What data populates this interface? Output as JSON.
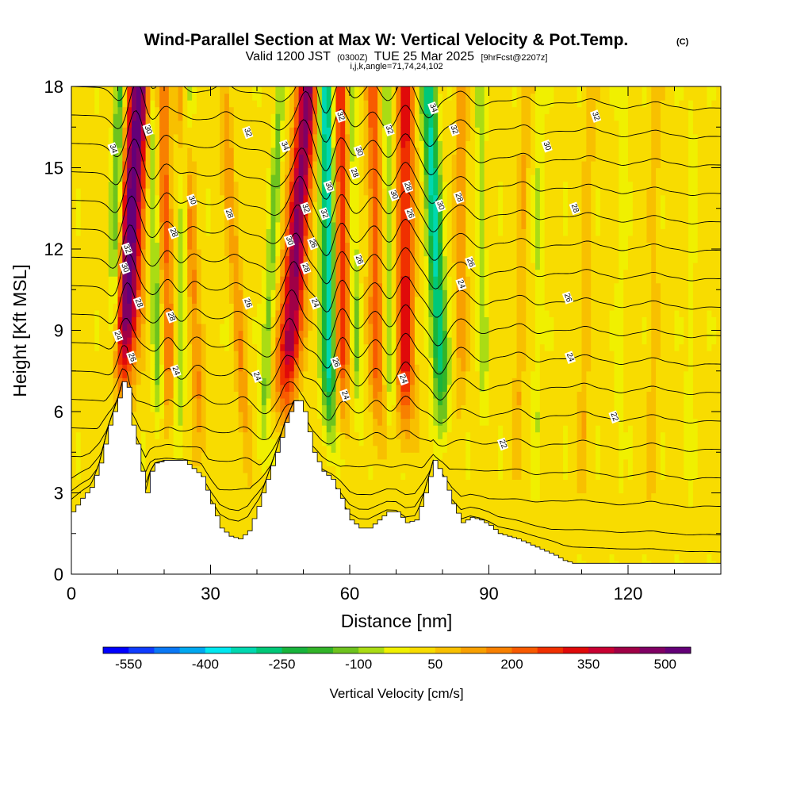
{
  "chart_data": {
    "type": "heatmap",
    "title": "Wind-Parallel Section at Max W: Vertical Velocity & Pot.Temp.",
    "title_tag": "(C)",
    "subtitle": {
      "prefix": "Valid 1200 JST",
      "utc": "(0300Z)",
      "date": "TUE 25 Mar 2025",
      "forecast": "[9hrFcst@2207z]"
    },
    "params": "i,j,k,angle=71,74,24,102",
    "xlabel": "Distance [nm]",
    "ylabel": "Height [Kft MSL]",
    "xlim": [
      0,
      140
    ],
    "ylim": [
      0,
      18
    ],
    "x_ticks": [
      "0",
      "30",
      "60",
      "90",
      "120"
    ],
    "y_ticks": [
      "0",
      "3",
      "6",
      "9",
      "12",
      "15",
      "18"
    ],
    "colorbar": {
      "title": "Vertical Velocity [cm/s]",
      "colors": [
        "#0000ff",
        "#0f3cff",
        "#0a78f5",
        "#00a8f0",
        "#00e8f0",
        "#00d8b0",
        "#00c878",
        "#18b43c",
        "#32b428",
        "#6ec31e",
        "#aadc14",
        "#f0f000",
        "#f8dc00",
        "#f8c000",
        "#f8a000",
        "#f88000",
        "#f85a00",
        "#f03000",
        "#e00a0a",
        "#c80032",
        "#a00046",
        "#800064",
        "#640078"
      ],
      "tick_labels": [
        "-550",
        "-400",
        "-250",
        "-100",
        "50",
        "200",
        "350",
        "500"
      ]
    },
    "terrain_kft": [
      [
        0,
        2.3
      ],
      [
        2,
        2.8
      ],
      [
        4,
        3.2
      ],
      [
        6,
        4.1
      ],
      [
        8,
        5.5
      ],
      [
        10,
        6.5
      ],
      [
        11,
        7.1
      ],
      [
        12,
        6.9
      ],
      [
        13,
        5.5
      ],
      [
        14,
        4.8
      ],
      [
        15,
        3.8
      ],
      [
        16,
        3.0
      ],
      [
        17,
        3.8
      ],
      [
        18,
        4.1
      ],
      [
        20,
        4.2
      ],
      [
        24,
        4.2
      ],
      [
        26,
        3.9
      ],
      [
        28,
        3.6
      ],
      [
        30,
        2.6
      ],
      [
        32,
        1.7
      ],
      [
        34,
        1.4
      ],
      [
        36,
        1.3
      ],
      [
        38,
        1.6
      ],
      [
        40,
        2.5
      ],
      [
        42,
        3.5
      ],
      [
        44,
        4.5
      ],
      [
        46,
        5.6
      ],
      [
        48,
        6.4
      ],
      [
        49,
        6.4
      ],
      [
        50,
        6.0
      ],
      [
        52,
        4.5
      ],
      [
        54,
        3.8
      ],
      [
        56,
        3.5
      ],
      [
        58,
        2.8
      ],
      [
        60,
        2.0
      ],
      [
        62,
        1.7
      ],
      [
        64,
        1.7
      ],
      [
        66,
        2.0
      ],
      [
        68,
        2.3
      ],
      [
        70,
        2.3
      ],
      [
        72,
        1.9
      ],
      [
        74,
        2.0
      ],
      [
        76,
        3.0
      ],
      [
        78,
        4.2
      ],
      [
        80,
        3.6
      ],
      [
        82,
        2.6
      ],
      [
        84,
        1.9
      ],
      [
        86,
        2.1
      ],
      [
        88,
        2.0
      ],
      [
        90,
        1.8
      ],
      [
        92,
        1.5
      ],
      [
        96,
        1.3
      ],
      [
        100,
        1.0
      ],
      [
        104,
        0.7
      ],
      [
        106,
        0.5
      ],
      [
        108,
        0.4
      ],
      [
        115,
        0.4
      ],
      [
        140,
        0.4
      ]
    ],
    "updraft_bands": [
      {
        "x_bottom": 11,
        "x_top": 14.5,
        "y_bottom": 6.8,
        "w_max": 520
      },
      {
        "x_bottom": 21,
        "x_top": 20,
        "y_bottom": 5.5,
        "w_max": 180
      },
      {
        "x_bottom": 28,
        "x_top": 24,
        "y_bottom": 4.5,
        "w_max": 150
      },
      {
        "x_bottom": 38,
        "x_top": 33,
        "y_bottom": 3.5,
        "w_max": 120
      },
      {
        "x_bottom": 46,
        "x_top": 51,
        "y_bottom": 6.0,
        "w_max": 450
      },
      {
        "x_bottom": 58,
        "x_top": 58,
        "y_bottom": 5.5,
        "w_max": 300
      },
      {
        "x_bottom": 66,
        "x_top": 65,
        "y_bottom": 5.0,
        "w_max": 200
      },
      {
        "x_bottom": 72,
        "x_top": 72,
        "y_bottom": 5.0,
        "w_max": 300
      },
      {
        "x_bottom": 84,
        "x_top": 84,
        "y_bottom": 6.0,
        "w_max": 120
      },
      {
        "x_bottom": 96,
        "x_top": 98,
        "y_bottom": 4.0,
        "w_max": 80
      },
      {
        "x_bottom": 110,
        "x_top": 112,
        "y_bottom": 3.0,
        "w_max": 70
      },
      {
        "x_bottom": 125,
        "x_top": 126,
        "y_bottom": 2.0,
        "w_max": 60
      }
    ],
    "downdraft_bands": [
      {
        "x_bottom": 9,
        "x_top": 10.5,
        "y_bottom": 7.0,
        "w_min": -230
      },
      {
        "x_bottom": 19,
        "x_top": 17,
        "y_bottom": 5.0,
        "w_min": -150
      },
      {
        "x_bottom": 23,
        "x_top": 25,
        "y_bottom": 4.8,
        "w_min": -130
      },
      {
        "x_bottom": 41,
        "x_top": 45,
        "y_bottom": 4.0,
        "w_min": -140
      },
      {
        "x_bottom": 56,
        "x_top": 55,
        "y_bottom": 5.0,
        "w_min": -380
      },
      {
        "x_bottom": 62,
        "x_top": 60,
        "y_bottom": 5.0,
        "w_min": -120
      },
      {
        "x_bottom": 69,
        "x_top": 68,
        "y_bottom": 5.0,
        "w_min": -110
      },
      {
        "x_bottom": 80,
        "x_top": 77,
        "y_bottom": 5.5,
        "w_min": -330
      },
      {
        "x_bottom": 89,
        "x_top": 88,
        "y_bottom": 5.0,
        "w_min": -100
      },
      {
        "x_bottom": 100,
        "x_top": 101,
        "y_bottom": 3.0,
        "w_min": -70
      },
      {
        "x_bottom": 118,
        "x_top": 119,
        "y_bottom": 2.5,
        "w_min": -60
      },
      {
        "x_bottom": 133,
        "x_top": 134,
        "y_bottom": 2.0,
        "w_min": -50
      }
    ],
    "theta_contour_labels": [
      {
        "text": "34",
        "x": 9,
        "y": 15.7
      },
      {
        "text": "30",
        "x": 16.5,
        "y": 16.4
      },
      {
        "text": "32",
        "x": 12,
        "y": 12.0
      },
      {
        "text": "30",
        "x": 11.5,
        "y": 11.3
      },
      {
        "text": "28",
        "x": 14.5,
        "y": 10.0
      },
      {
        "text": "24",
        "x": 10,
        "y": 8.8
      },
      {
        "text": "26",
        "x": 13,
        "y": 8.0
      },
      {
        "text": "30",
        "x": 26,
        "y": 13.8
      },
      {
        "text": "28",
        "x": 22,
        "y": 12.6
      },
      {
        "text": "28",
        "x": 21.5,
        "y": 9.5
      },
      {
        "text": "24",
        "x": 22.5,
        "y": 7.5
      },
      {
        "text": "32",
        "x": 38,
        "y": 16.3
      },
      {
        "text": "28",
        "x": 34,
        "y": 13.3
      },
      {
        "text": "26",
        "x": 38,
        "y": 10.0
      },
      {
        "text": "24",
        "x": 40,
        "y": 7.3
      },
      {
        "text": "34",
        "x": 46,
        "y": 15.8
      },
      {
        "text": "30",
        "x": 47,
        "y": 12.3
      },
      {
        "text": "32",
        "x": 50.5,
        "y": 13.5
      },
      {
        "text": "28",
        "x": 50.5,
        "y": 11.3
      },
      {
        "text": "26",
        "x": 52,
        "y": 12.2
      },
      {
        "text": "24",
        "x": 52.5,
        "y": 10.0
      },
      {
        "text": "32",
        "x": 58,
        "y": 16.9
      },
      {
        "text": "30",
        "x": 55.5,
        "y": 14.3
      },
      {
        "text": "32",
        "x": 54.5,
        "y": 13.3
      },
      {
        "text": "26",
        "x": 57,
        "y": 7.8
      },
      {
        "text": "24",
        "x": 59,
        "y": 6.6
      },
      {
        "text": "30",
        "x": 62,
        "y": 15.6
      },
      {
        "text": "28",
        "x": 61,
        "y": 14.8
      },
      {
        "text": "26",
        "x": 62,
        "y": 11.6
      },
      {
        "text": "32",
        "x": 68.5,
        "y": 16.4
      },
      {
        "text": "30",
        "x": 69.5,
        "y": 14.0
      },
      {
        "text": "28",
        "x": 72.5,
        "y": 14.3
      },
      {
        "text": "26",
        "x": 73,
        "y": 13.3
      },
      {
        "text": "24",
        "x": 71.5,
        "y": 7.2
      },
      {
        "text": "34",
        "x": 78,
        "y": 17.2
      },
      {
        "text": "32",
        "x": 82.5,
        "y": 16.4
      },
      {
        "text": "30",
        "x": 79.5,
        "y": 13.6
      },
      {
        "text": "28",
        "x": 83.5,
        "y": 13.9
      },
      {
        "text": "26",
        "x": 86,
        "y": 11.5
      },
      {
        "text": "24",
        "x": 84,
        "y": 10.7
      },
      {
        "text": "32",
        "x": 113,
        "y": 16.9
      },
      {
        "text": "30",
        "x": 102.5,
        "y": 15.8
      },
      {
        "text": "28",
        "x": 108.5,
        "y": 13.5
      },
      {
        "text": "26",
        "x": 107,
        "y": 10.2
      },
      {
        "text": "24",
        "x": 107.5,
        "y": 8.0
      },
      {
        "text": "22",
        "x": 117,
        "y": 5.8
      },
      {
        "text": "22",
        "x": 93,
        "y": 4.8
      }
    ],
    "grid": false
  }
}
